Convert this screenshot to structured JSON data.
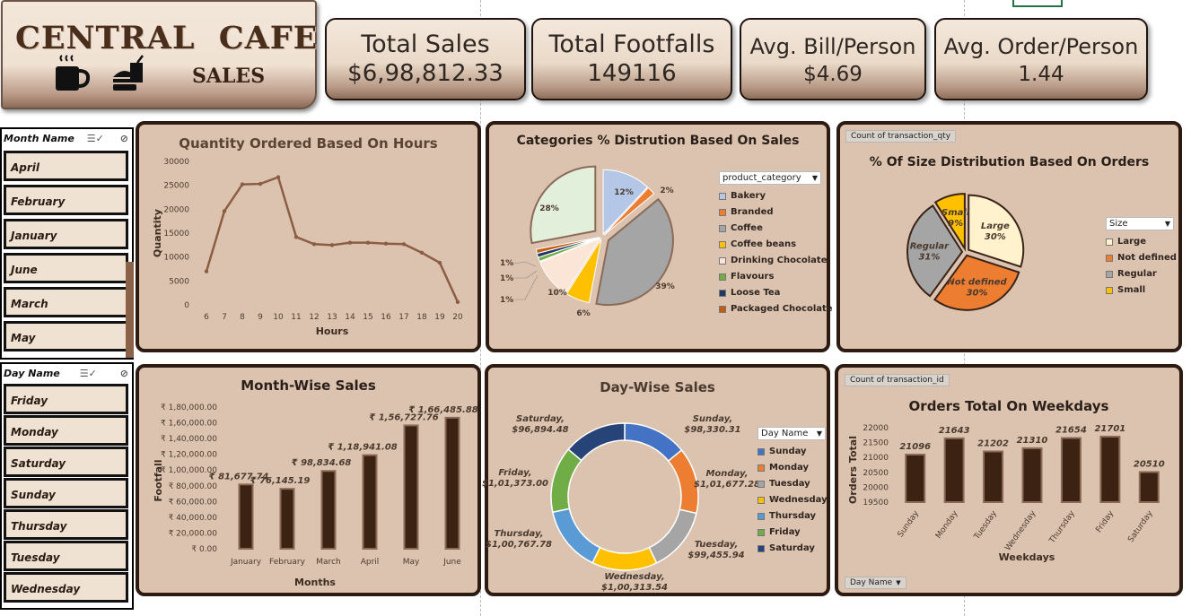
{
  "header": {
    "title": "CENTRAL  CAFE",
    "subtitle": "SALES",
    "icons": [
      "coffee-cup-icon",
      "burger-drink-icon"
    ]
  },
  "kpis": [
    {
      "label": "Total Sales",
      "value": "$6,98,812.33"
    },
    {
      "label": "Total Footfalls",
      "value": "149116"
    },
    {
      "label": "Avg. Bill/Person",
      "value": "$4.69"
    },
    {
      "label": "Avg. Order/Person",
      "value": "1.44"
    }
  ],
  "month_slicer": {
    "header": "Month Name",
    "items": [
      "April",
      "February",
      "January",
      "June",
      "March",
      "May"
    ]
  },
  "day_slicer": {
    "header": "Day Name",
    "items": [
      "Friday",
      "Monday",
      "Saturday",
      "Sunday",
      "Thursday",
      "Tuesday",
      "Wednesday"
    ]
  },
  "colors": {
    "panel_bg": "#dcc3af",
    "panel_border": "#2d1b12",
    "line": "#8b5e44",
    "bar": "#3b2212",
    "bar_border": "#8b6a58"
  },
  "chart_data": [
    {
      "id": "hours",
      "type": "line",
      "title": "Quantity Ordered Based On Hours",
      "xlabel": "Hours",
      "ylabel": "Quantity",
      "x": [
        6,
        7,
        8,
        9,
        10,
        11,
        12,
        13,
        14,
        15,
        16,
        17,
        18,
        19,
        20
      ],
      "values": [
        7000,
        19600,
        25200,
        25300,
        26700,
        14200,
        12700,
        12500,
        13000,
        13000,
        12800,
        12700,
        10900,
        8800,
        600
      ],
      "ylim": [
        0,
        30000
      ],
      "yticks": [
        "30000",
        "25000",
        "20000",
        "15000",
        "10000",
        "5000",
        "0"
      ],
      "grid": false
    },
    {
      "id": "categories",
      "type": "pie",
      "title": "Categories % Distrution Based On Sales",
      "legend_title": "product_category",
      "legend_position": "right",
      "slices": [
        {
          "name": "Bakery",
          "value": 12,
          "label": "12%",
          "color": "#b4c7e7"
        },
        {
          "name": "Branded",
          "value": 2,
          "label": "2%",
          "color": "#ed7d31"
        },
        {
          "name": "Coffee",
          "value": 39,
          "label": "39%",
          "color": "#a5a5a5"
        },
        {
          "name": "Coffee beans",
          "value": 6,
          "label": "6%",
          "color": "#ffc000"
        },
        {
          "name": "Drinking Chocolate",
          "value": 10,
          "label": "10%",
          "color": "#fbe5d6"
        },
        {
          "name": "Flavours",
          "value": 1,
          "label": "1%",
          "color": "#70ad47"
        },
        {
          "name": "Loose Tea",
          "value": 1,
          "label": "1%",
          "color": "#203864"
        },
        {
          "name": "Packaged Chocolate",
          "value": 1,
          "label": "1%",
          "color": "#c55a11"
        },
        {
          "name": "",
          "value": 28,
          "label": "28%",
          "color": "#e2efda"
        }
      ]
    },
    {
      "id": "sizes",
      "type": "pie",
      "title": "% Of Size Distribution Based On Orders",
      "field_button": "Count of transaction_qty",
      "legend_title": "Size",
      "legend_position": "right",
      "slices": [
        {
          "name": "Large",
          "value": 30,
          "label": "Large\n30%",
          "color": "#fff2cc"
        },
        {
          "name": "Not defined",
          "value": 30,
          "label": "Not defined\n30%",
          "color": "#ed7d31"
        },
        {
          "name": "Regular",
          "value": 31,
          "label": "Regular\n31%",
          "color": "#a5a5a5"
        },
        {
          "name": "Small",
          "value": 9,
          "label": "Small\n9%",
          "color": "#ffc000"
        }
      ]
    },
    {
      "id": "months",
      "type": "bar",
      "title": "Month-Wise Sales",
      "xlabel": "Months",
      "ylabel": "Footfall",
      "categories": [
        "January",
        "February",
        "March",
        "April",
        "May",
        "June"
      ],
      "values": [
        81677.74,
        76145.19,
        98834.68,
        118941.08,
        156727.76,
        166485.88
      ],
      "labels": [
        "₹ 81,677.74",
        "₹ 76,145.19",
        "₹ 98,834.68",
        "₹ 1,18,941.08",
        "₹ 1,56,727.76",
        "₹ 1,66,485.88"
      ],
      "ylim": [
        0,
        180000
      ],
      "yticks": [
        "₹ 1,80,000.00",
        "₹ 1,60,000.00",
        "₹ 1,40,000.00",
        "₹ 1,20,000.00",
        "₹ 1,00,000.00",
        "₹ 80,000.00",
        "₹ 60,000.00",
        "₹ 40,000.00",
        "₹ 20,000.00",
        "₹ 0.00"
      ]
    },
    {
      "id": "days",
      "type": "pie",
      "subtype": "doughnut",
      "title": "Day-Wise Sales",
      "legend_title": "Day Name",
      "legend_position": "right",
      "slices": [
        {
          "name": "Sunday",
          "value": 98330.31,
          "label": "Sunday,\n$98,330.31",
          "color": "#4472c4"
        },
        {
          "name": "Monday",
          "value": 101677.28,
          "label": "Monday,\n$1,01,677.28",
          "color": "#ed7d31"
        },
        {
          "name": "Tuesday",
          "value": 99455.94,
          "label": "Tuesday,\n$99,455.94",
          "color": "#a5a5a5"
        },
        {
          "name": "Wednesday",
          "value": 100313.54,
          "label": "Wednesday,\n$1,00,313.54",
          "color": "#ffc000"
        },
        {
          "name": "Thursday",
          "value": 100767.78,
          "label": "Thursday,\n$1,00,767.78",
          "color": "#5b9bd5"
        },
        {
          "name": "Friday",
          "value": 101373.0,
          "label": "Friday,\n$1,01,373.00",
          "color": "#70ad47"
        },
        {
          "name": "Saturday",
          "value": 96894.48,
          "label": "Saturday,\n$96,894.48",
          "color": "#264478"
        }
      ]
    },
    {
      "id": "weekdays",
      "type": "bar",
      "title": "Orders Total On Weekdays",
      "field_button": "Count of transaction_id",
      "axis_button": "Day Name",
      "xlabel": "Weekdays",
      "ylabel": "Orders Total",
      "categories": [
        "Sunday",
        "Monday",
        "Tuesday",
        "Wednesday",
        "Thursday",
        "Friday",
        "Saturday"
      ],
      "values": [
        21096,
        21643,
        21202,
        21310,
        21654,
        21701,
        20510
      ],
      "ylim": [
        19500,
        22000
      ],
      "yticks": [
        "22000",
        "21500",
        "21000",
        "20500",
        "20000",
        "19500"
      ]
    }
  ]
}
